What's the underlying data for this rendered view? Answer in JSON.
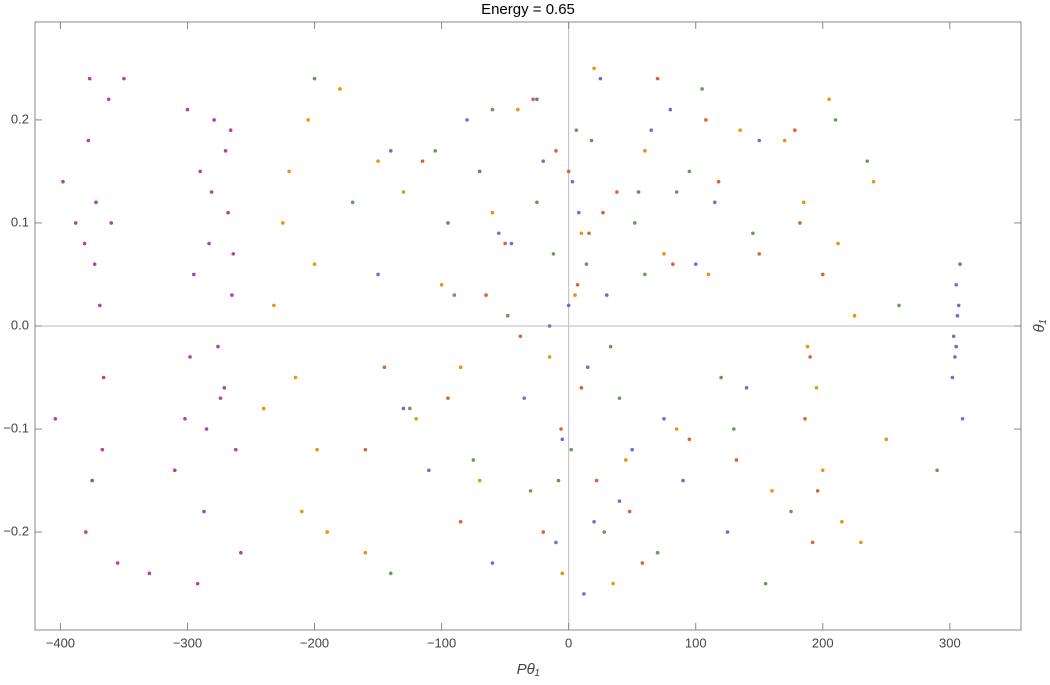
{
  "chart_data": {
    "type": "scatter",
    "title": "Energy = 0.65",
    "x_label": "Pθ₁",
    "y_label": "θ₁",
    "xlim": [
      -420,
      356
    ],
    "ylim": [
      -0.295,
      0.295
    ],
    "xticks": [
      {
        "value": -400,
        "label": "−400"
      },
      {
        "value": -300,
        "label": "−300"
      },
      {
        "value": -200,
        "label": "−200"
      },
      {
        "value": -100,
        "label": "−100"
      },
      0,
      100,
      200,
      300
    ],
    "yticks": [
      {
        "value": -0.2,
        "label": "−0.2"
      },
      {
        "value": -0.1,
        "label": "−0.1"
      },
      {
        "value": 0,
        "label": "0.0"
      },
      0.1,
      0.2
    ],
    "series": [
      {
        "color": "#b040b0",
        "x": [
          -378,
          -372,
          -366,
          -381,
          -375,
          -369,
          -362,
          -398,
          -404,
          -355,
          -290,
          -283,
          -276,
          -268,
          -262,
          -295,
          -287,
          -279,
          -271,
          -265,
          -310,
          -300,
          -285,
          -270,
          -258,
          -380,
          -373,
          -367,
          -377,
          -360,
          -292,
          -281,
          -274,
          -266,
          -298,
          -388,
          -350,
          -330,
          -302,
          -264
        ],
        "values": [
          0.18,
          0.12,
          -0.05,
          0.08,
          -0.15,
          0.02,
          0.22,
          0.14,
          -0.09,
          -0.23,
          0.15,
          0.08,
          -0.02,
          0.11,
          -0.12,
          0.05,
          -0.18,
          0.2,
          -0.06,
          0.03,
          -0.14,
          0.21,
          -0.1,
          0.17,
          -0.22,
          -0.2,
          0.06,
          -0.12,
          0.24,
          0.1,
          -0.25,
          0.13,
          -0.07,
          0.19,
          -0.03,
          0.1,
          0.24,
          -0.24,
          -0.09,
          0.07
        ]
      },
      {
        "color": "#e8940c",
        "x": [
          -225,
          -215,
          -205,
          -198,
          -232,
          -210,
          -220,
          -200,
          -190,
          -240,
          -180,
          -160,
          -130,
          -100,
          -70,
          -40,
          -15,
          10,
          35,
          60,
          85,
          110,
          135,
          160,
          185,
          195,
          205,
          215,
          225,
          240,
          250,
          188,
          212,
          230,
          -120,
          -60,
          -5,
          20,
          45,
          75,
          -150,
          170,
          200,
          -85,
          5
        ],
        "values": [
          0.1,
          -0.05,
          0.2,
          -0.12,
          0.02,
          -0.18,
          0.15,
          0.06,
          -0.2,
          -0.08,
          0.23,
          -0.22,
          0.13,
          0.04,
          -0.15,
          0.21,
          -0.03,
          0.09,
          -0.25,
          0.17,
          -0.1,
          0.05,
          0.19,
          -0.16,
          0.12,
          -0.06,
          0.22,
          -0.19,
          0.01,
          0.14,
          -0.11,
          -0.02,
          0.08,
          -0.21,
          -0.09,
          0.11,
          -0.24,
          0.25,
          -0.13,
          0.07,
          0.16,
          0.18,
          -0.14,
          -0.04,
          0.03
        ]
      },
      {
        "color": "#6e6ed0",
        "x": [
          -150,
          -110,
          -80,
          -55,
          -35,
          -20,
          -10,
          0,
          8,
          15,
          25,
          40,
          55,
          75,
          100,
          125,
          150,
          -5,
          3,
          12,
          -25,
          30,
          -60,
          65,
          -95,
          90,
          305,
          303,
          307,
          304,
          306,
          302,
          308,
          305,
          -130,
          115,
          -45,
          50,
          -15,
          20,
          -70,
          80,
          140,
          -140,
          310
        ],
        "values": [
          0.05,
          -0.14,
          0.2,
          0.09,
          -0.07,
          0.16,
          -0.21,
          0.02,
          0.11,
          -0.04,
          0.24,
          -0.17,
          0.13,
          -0.09,
          0.06,
          -0.2,
          0.18,
          -0.11,
          0.14,
          -0.26,
          0.22,
          0.03,
          -0.23,
          0.19,
          0.1,
          -0.15,
          0.04,
          -0.01,
          0.02,
          -0.03,
          0.01,
          -0.05,
          0.06,
          -0.02,
          -0.08,
          0.12,
          0.08,
          -0.12,
          0.0,
          -0.19,
          0.15,
          0.21,
          -0.06,
          0.17,
          -0.09
        ]
      },
      {
        "color": "#6a9a5a",
        "x": [
          -170,
          -125,
          -90,
          -60,
          -30,
          -12,
          2,
          18,
          33,
          52,
          70,
          95,
          120,
          145,
          175,
          210,
          260,
          290,
          -200,
          -140,
          -75,
          -25,
          6,
          28,
          60,
          105,
          130,
          -105,
          -48,
          40,
          155,
          235,
          -8,
          14,
          85
        ],
        "values": [
          0.12,
          -0.08,
          0.03,
          0.21,
          -0.16,
          0.07,
          -0.12,
          0.18,
          -0.02,
          0.1,
          -0.22,
          0.15,
          -0.05,
          0.09,
          -0.18,
          0.2,
          0.02,
          -0.14,
          0.24,
          -0.24,
          -0.13,
          0.12,
          0.19,
          -0.2,
          0.05,
          0.23,
          -0.1,
          0.17,
          0.01,
          -0.07,
          -0.25,
          0.16,
          -0.15,
          0.06,
          0.13
        ]
      },
      {
        "color": "#e06030",
        "x": [
          -145,
          -115,
          -85,
          -50,
          -28,
          -6,
          7,
          22,
          38,
          58,
          82,
          108,
          132,
          182,
          190,
          196,
          200,
          178,
          -95,
          -38,
          0,
          16,
          48,
          70,
          -65,
          95,
          -20,
          27,
          -160,
          150,
          186,
          192,
          -10,
          10,
          118
        ],
        "values": [
          -0.04,
          0.16,
          -0.19,
          0.08,
          0.22,
          -0.1,
          0.04,
          -0.15,
          0.13,
          -0.23,
          0.06,
          0.2,
          -0.13,
          0.1,
          -0.03,
          -0.16,
          0.05,
          0.19,
          -0.07,
          -0.01,
          0.15,
          0.09,
          -0.18,
          0.24,
          0.03,
          -0.11,
          -0.2,
          0.11,
          -0.12,
          0.07,
          -0.09,
          -0.21,
          0.17,
          -0.06,
          0.14
        ]
      }
    ]
  }
}
